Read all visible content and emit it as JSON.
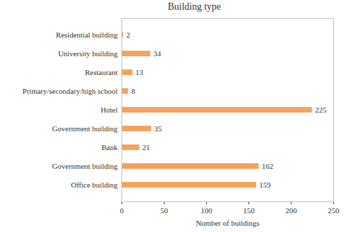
{
  "chart_data": {
    "type": "bar",
    "orientation": "horizontal",
    "title": "Building type",
    "x_label": "Number of buildings",
    "categories": [
      "Residential building",
      "University building",
      "Restaurant",
      "Primary/secondary/high school",
      "Hotel",
      "Government building",
      "Bank",
      "Government building",
      "Office building"
    ],
    "values": [
      2,
      34,
      13,
      8,
      225,
      35,
      21,
      162,
      159
    ],
    "color": "#f5a25d",
    "xlim": [
      0,
      250
    ],
    "xticks": [
      0,
      50,
      100,
      150,
      200,
      250
    ],
    "grid": false,
    "data_labels": true
  }
}
